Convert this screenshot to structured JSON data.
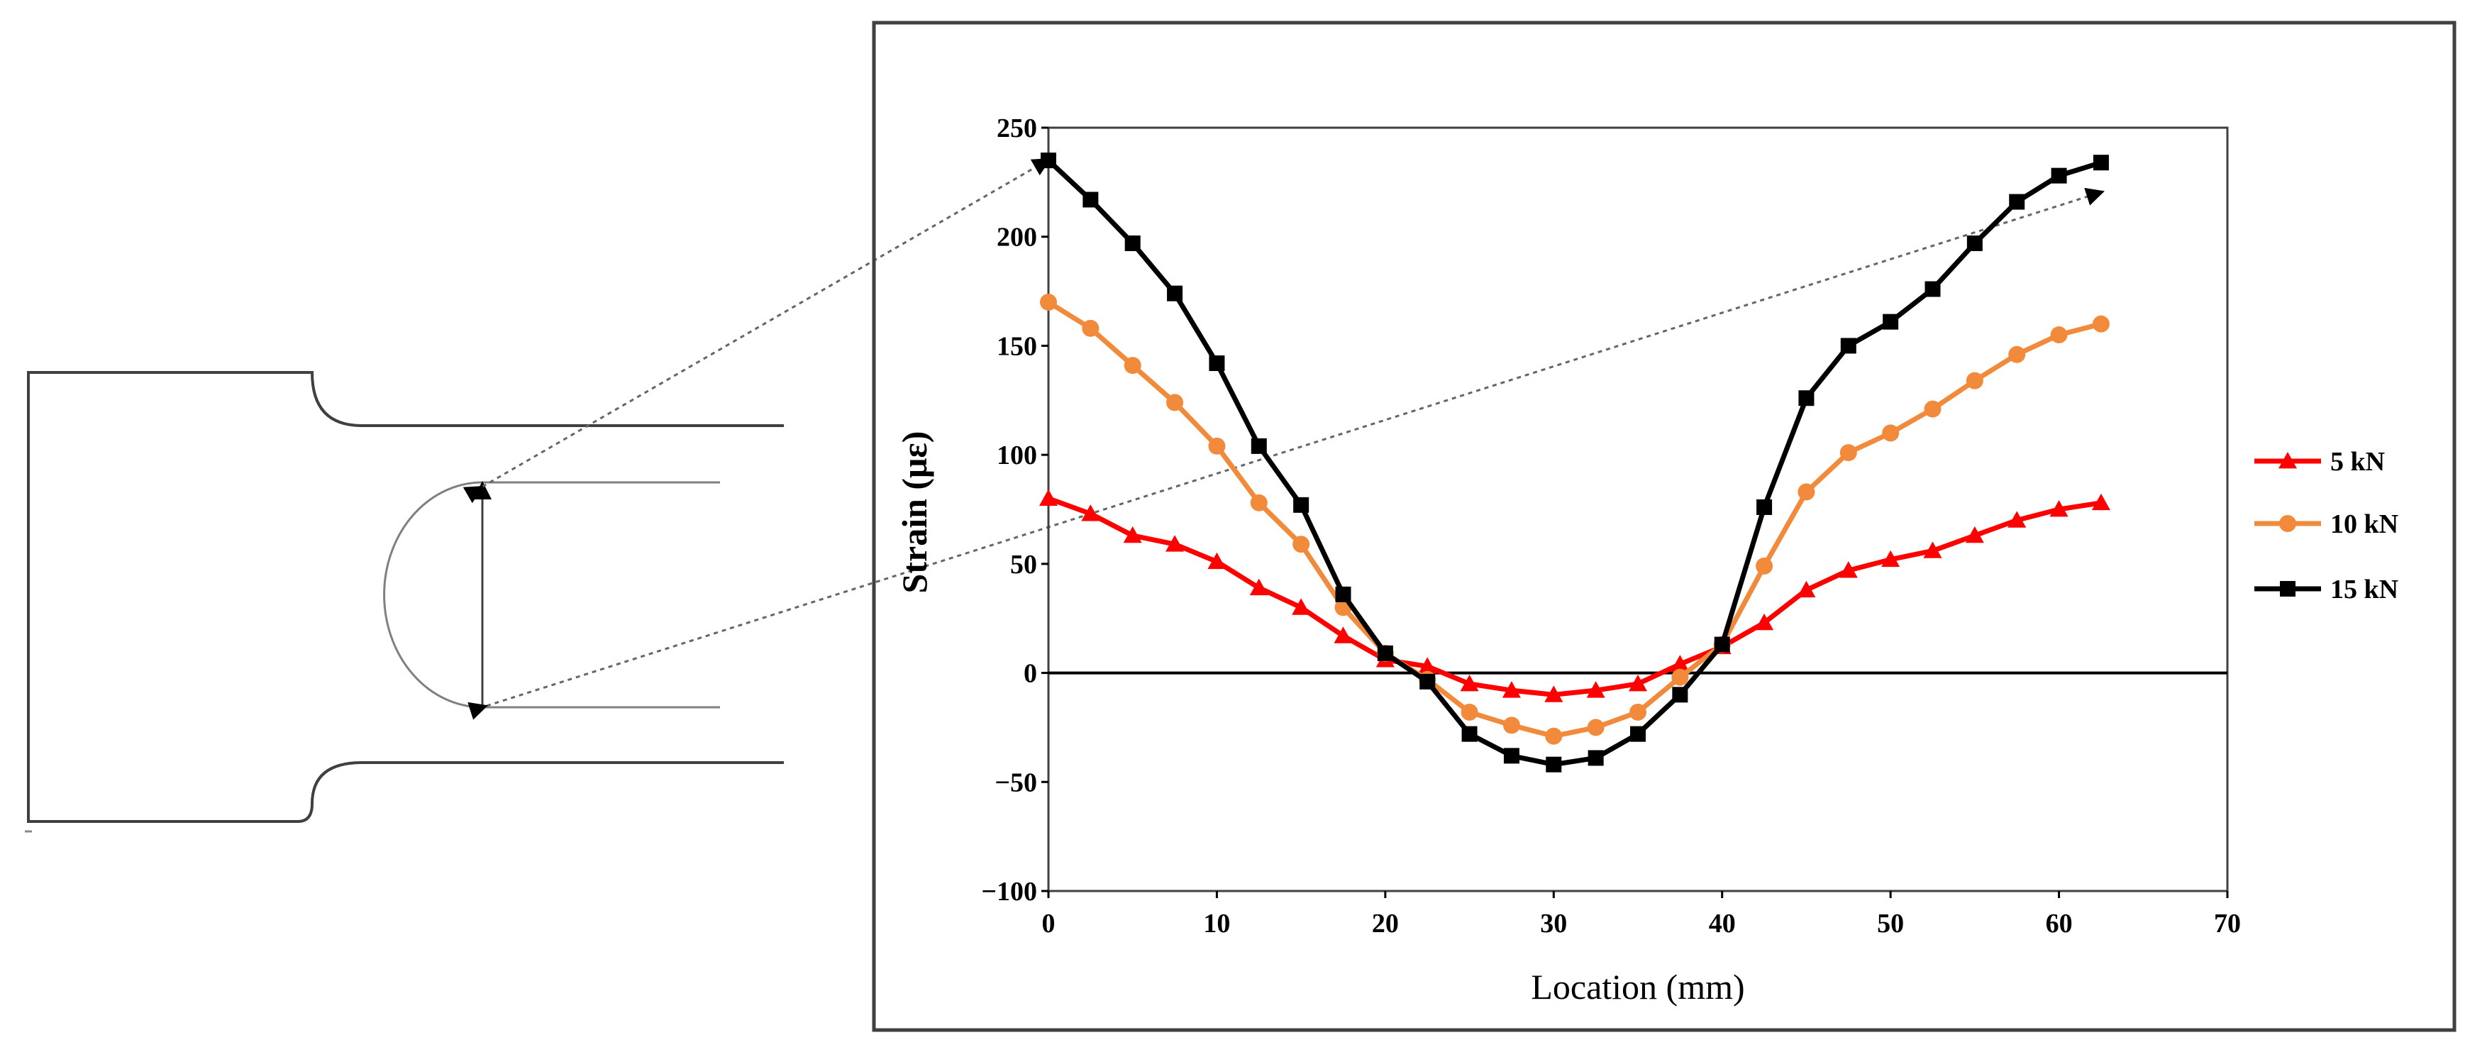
{
  "chart_data": {
    "type": "line",
    "title": "",
    "xlabel": "Location (mm)",
    "ylabel": "Strain (με)",
    "xlim": [
      0,
      70
    ],
    "ylim": [
      -100,
      250
    ],
    "xticks": [
      0,
      10,
      20,
      30,
      40,
      50,
      60,
      70
    ],
    "yticks": [
      -100,
      -50,
      0,
      50,
      100,
      150,
      200,
      250
    ],
    "x_tick_labels": [
      "0",
      "10",
      "20",
      "30",
      "40",
      "50",
      "60",
      "70"
    ],
    "y_tick_labels": [
      "−100",
      "−50",
      "0",
      "50",
      "100",
      "150",
      "200",
      "250"
    ],
    "grid": false,
    "zero_line": true,
    "legend_position": "right",
    "x": [
      0,
      2.5,
      5,
      7.5,
      10,
      12.5,
      15,
      17.5,
      20,
      22.5,
      25,
      27.5,
      30,
      32.5,
      35,
      37.5,
      40,
      42.5,
      45,
      47.5,
      50,
      52.5,
      55,
      57.5,
      60,
      62.5
    ],
    "series": [
      {
        "name": "5 kN",
        "color": "#ff0000",
        "marker": "triangle",
        "values": [
          80,
          73,
          63,
          59,
          51,
          39,
          30,
          17,
          6,
          3,
          -5,
          -8,
          -10,
          -8,
          -5,
          4,
          12,
          23,
          38,
          47,
          52,
          56,
          63,
          70,
          75,
          78
        ]
      },
      {
        "name": "10 kN",
        "color": "#f28a3c",
        "marker": "circle",
        "values": [
          170,
          158,
          141,
          124,
          104,
          78,
          59,
          30,
          9,
          -3,
          -18,
          -24,
          -29,
          -25,
          -18,
          -2,
          13,
          49,
          83,
          101,
          110,
          121,
          134,
          146,
          155,
          160
        ]
      },
      {
        "name": "15 kN",
        "color": "#000000",
        "marker": "square",
        "values": [
          235,
          217,
          197,
          174,
          142,
          104,
          77,
          36,
          9,
          -4,
          -28,
          -38,
          -42,
          -39,
          -28,
          -10,
          13,
          76,
          126,
          150,
          161,
          176,
          197,
          216,
          228,
          234
        ]
      }
    ]
  }
}
